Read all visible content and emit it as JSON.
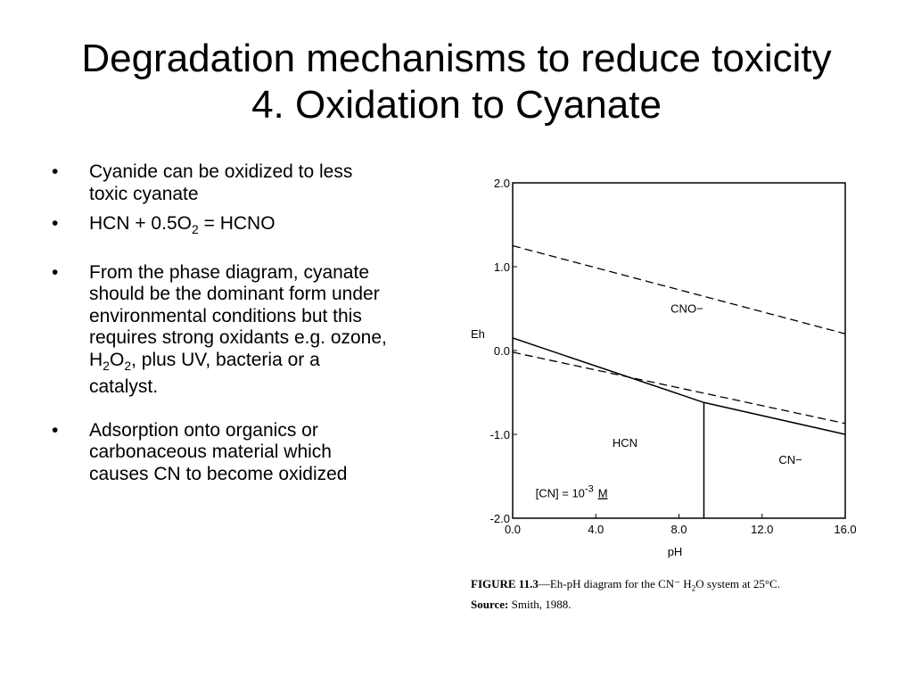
{
  "slide": {
    "title_line1": "Degradation mechanisms to reduce toxicity",
    "title_line2": "4. Oxidation to Cyanate"
  },
  "bullets": {
    "b1": "Cyanide can be oxidized to less toxic cyanate",
    "b2": {
      "pre": "HCN + 0.5O",
      "sub": "2",
      "post": " = HCNO"
    },
    "b3": {
      "pre": "From the phase diagram, cyanate should be the dominant form under environmental conditions but this requires strong oxidants e.g. ozone, H",
      "sub1": "2",
      "mid": "O",
      "sub2": "2",
      "post": ", plus UV, bacteria or a catalyst."
    },
    "b4": "Adsorption onto organics or carbonaceous material which causes CN to become oxidized"
  },
  "figure_caption": {
    "label": "FIGURE 11.3",
    "text_pre": "—Eh-pH diagram for the CN⁻ H",
    "text_sub": "2",
    "text_post": "O system at 25°C.",
    "source_label": "Source:",
    "source_text": "Smith, 1988."
  },
  "chart_data": {
    "type": "line",
    "xlabel": "pH",
    "ylabel": "Eh",
    "xlim": [
      0,
      16
    ],
    "ylim": [
      -2,
      2
    ],
    "x_ticks": [
      0,
      4,
      8,
      12,
      16
    ],
    "x_tick_labels": [
      "0.0",
      "4.0",
      "8.0",
      "12.0",
      "16.0"
    ],
    "y_ticks": [
      2,
      1,
      0,
      -1,
      -2
    ],
    "y_tick_labels": [
      "2.0",
      "1.0",
      "0.0",
      "-1.0",
      "-2.0"
    ],
    "grid": false,
    "series": [
      {
        "style": "dashed",
        "x": [
          0,
          16
        ],
        "y": [
          1.25,
          0.2
        ]
      },
      {
        "style": "dashed",
        "x": [
          0,
          16
        ],
        "y": [
          -0.02,
          -0.87
        ]
      },
      {
        "style": "solid",
        "x": [
          0,
          9.2,
          16
        ],
        "y": [
          0.15,
          -0.62,
          -1.0
        ]
      },
      {
        "style": "solid",
        "x": [
          9.2,
          9.2
        ],
        "y": [
          -0.62,
          -2.0
        ]
      }
    ],
    "region_labels": [
      {
        "text": "CNO−",
        "x": 7.6,
        "y": 0.45
      },
      {
        "text": "HCN",
        "x": 4.8,
        "y": -1.15
      },
      {
        "text": "CN−",
        "x": 12.8,
        "y": -1.35
      }
    ],
    "annotation": {
      "pre": "[CN] = 10",
      "sup": "-3",
      "unit": "M",
      "x": 1.1,
      "y": -1.75
    }
  }
}
